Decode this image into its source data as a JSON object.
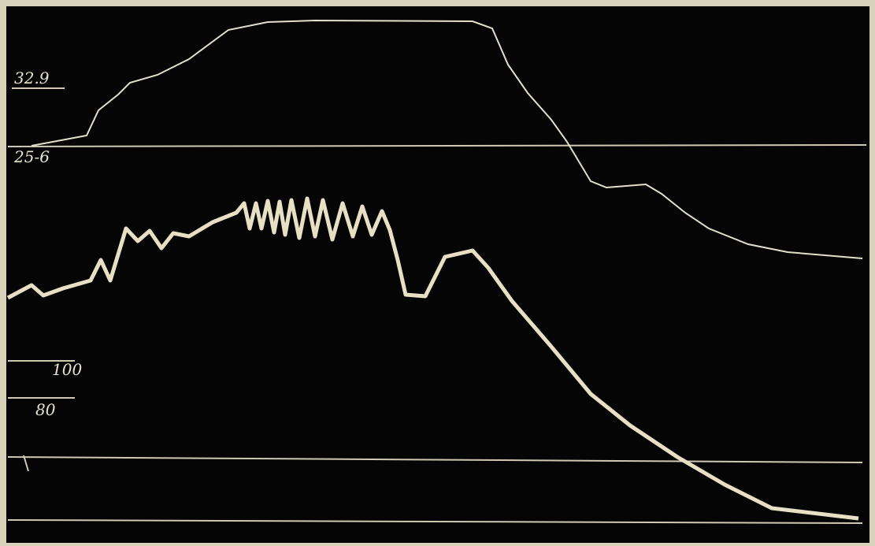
{
  "scale_labels": [
    "32.9",
    "25-6",
    "100",
    "80"
  ]
}
